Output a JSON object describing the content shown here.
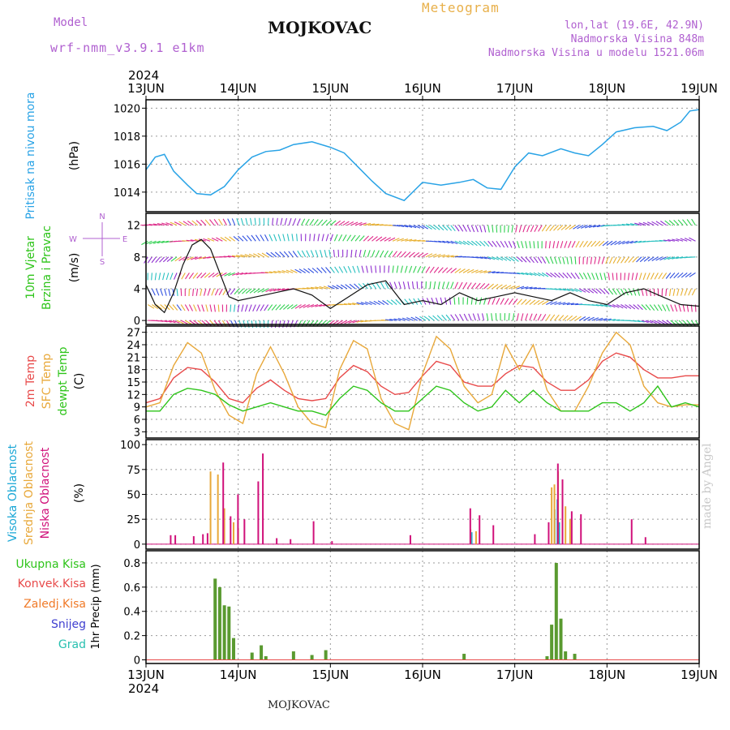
{
  "header": {
    "model_label": "Model",
    "model_run": "wrf-nmm_v3.9.1  e1km",
    "title": "MOJKOVAC",
    "meteogram": "Meteogram",
    "lonlat": "lon,lat (19.6E, 42.9N)",
    "altitude": "Nadmorska Visina 848m",
    "model_altitude": "Nadmorska Visina u modelu 1521.06m"
  },
  "footer": {
    "station": "MOJKOVAC",
    "credit": "made by Angel"
  },
  "colors": {
    "pressure": "#29a3e6",
    "temp2m": "#e84a4a",
    "sfc": "#e8a83a",
    "dew": "#2ec41a",
    "high_cloud": "#1aa7d6",
    "mid_cloud": "#e8a83a",
    "low_cloud": "#d0107a",
    "total_precip": "#2ec41a",
    "conv_precip": "#e84a4a",
    "frz_precip": "#f07a28",
    "snow": "#4040d0",
    "graupel": "#28c0b0",
    "run_labels": "#b060d0"
  },
  "chart_data": [
    {
      "type": "line",
      "id": "pressure",
      "ylabel": "(hPa)",
      "side_labels": [
        "Pritisak na nivou mora"
      ],
      "top_year": "2024",
      "x_ticks": [
        "13JUN",
        "14JUN",
        "15JUN",
        "16JUN",
        "17JUN",
        "18JUN",
        "19JUN"
      ],
      "ylim": [
        1012.6,
        1020.6
      ],
      "y_ticks": [
        1014,
        1016,
        1018,
        1020
      ],
      "series": [
        {
          "x": [
            0,
            0.1,
            0.2,
            0.3,
            0.45,
            0.55,
            0.7,
            0.85,
            1.0,
            1.15,
            1.3,
            1.45,
            1.6,
            1.8,
            2.0,
            2.15,
            2.3,
            2.45,
            2.6,
            2.8,
            3.0,
            3.2,
            3.4,
            3.55,
            3.7,
            3.85,
            4.0,
            4.15,
            4.3,
            4.5,
            4.65,
            4.8,
            4.95,
            5.1,
            5.3,
            5.5,
            5.65,
            5.8,
            5.9,
            6.0
          ],
          "y": [
            1015.6,
            1016.5,
            1016.7,
            1015.5,
            1014.5,
            1013.9,
            1013.8,
            1014.4,
            1015.6,
            1016.5,
            1016.9,
            1017.0,
            1017.4,
            1017.6,
            1017.2,
            1016.8,
            1015.8,
            1014.8,
            1013.9,
            1013.4,
            1014.7,
            1014.5,
            1014.7,
            1014.9,
            1014.3,
            1014.2,
            1015.8,
            1016.8,
            1016.6,
            1017.1,
            1016.8,
            1016.6,
            1017.4,
            1018.3,
            1018.6,
            1018.7,
            1018.4,
            1019.0,
            1019.8,
            1019.9
          ]
        }
      ]
    },
    {
      "type": "line",
      "id": "wind",
      "ylabel": "(m/s)",
      "side_labels": [
        "10m Vjetar",
        "Brzina i Pravac"
      ],
      "compass": {
        "n": "N",
        "w": "W",
        "e": "E",
        "s": "S"
      },
      "ylim": [
        -0.5,
        13.5
      ],
      "y_ticks": [
        0,
        4,
        8,
        12
      ],
      "series": [
        {
          "name": "speed",
          "x": [
            0,
            0.1,
            0.2,
            0.3,
            0.4,
            0.5,
            0.6,
            0.7,
            0.8,
            0.9,
            1.0,
            1.2,
            1.4,
            1.6,
            1.8,
            2.0,
            2.2,
            2.4,
            2.6,
            2.8,
            3.0,
            3.2,
            3.4,
            3.6,
            3.8,
            4.0,
            4.2,
            4.4,
            4.6,
            4.8,
            5.0,
            5.2,
            5.4,
            5.6,
            5.8,
            6.0
          ],
          "y": [
            4.5,
            2.0,
            1.0,
            3.5,
            7.0,
            9.5,
            10.2,
            9.0,
            6.0,
            3.0,
            2.5,
            3.0,
            3.5,
            4.0,
            3.2,
            1.5,
            3.0,
            4.5,
            5.0,
            2.0,
            2.5,
            2.0,
            3.5,
            2.5,
            3.0,
            3.5,
            3.0,
            2.5,
            3.5,
            2.5,
            2.0,
            3.5,
            4.0,
            3.0,
            2.0,
            1.8
          ]
        }
      ]
    },
    {
      "type": "line",
      "id": "temperature",
      "ylabel": "(C)",
      "side_labels": [
        "2m Temp",
        "SFC Temp",
        "dewpt Temp"
      ],
      "ylim": [
        1.5,
        28.5
      ],
      "y_ticks": [
        3,
        6,
        9,
        12,
        15,
        18,
        21,
        24,
        27
      ],
      "x": [
        0,
        0.15,
        0.3,
        0.45,
        0.6,
        0.75,
        0.9,
        1.05,
        1.2,
        1.35,
        1.5,
        1.65,
        1.8,
        1.95,
        2.1,
        2.25,
        2.4,
        2.55,
        2.7,
        2.85,
        3.0,
        3.15,
        3.3,
        3.45,
        3.6,
        3.75,
        3.9,
        4.05,
        4.2,
        4.35,
        4.5,
        4.65,
        4.8,
        4.95,
        5.1,
        5.25,
        5.4,
        5.55,
        5.7,
        5.85,
        6.0
      ],
      "series": [
        {
          "name": "2m Temp",
          "y": [
            10,
            11,
            16,
            18.5,
            18,
            15,
            11,
            10,
            13.5,
            15.5,
            13,
            11,
            10.5,
            11,
            16,
            19,
            17.5,
            14,
            12,
            12.5,
            16.5,
            20,
            19,
            15,
            14,
            14,
            17,
            19,
            18.5,
            15,
            13,
            13,
            15.5,
            20,
            22,
            21,
            18,
            16,
            16,
            16.5,
            16.5
          ]
        },
        {
          "name": "SFC Temp",
          "y": [
            9,
            10,
            19,
            24.5,
            22,
            13,
            7,
            5,
            17,
            23.5,
            17,
            9,
            5,
            4,
            18,
            25,
            23,
            11,
            5,
            3.5,
            17,
            26,
            23,
            14,
            10,
            12,
            24,
            18,
            24,
            13,
            8,
            8,
            14,
            22,
            27,
            24,
            14,
            10,
            9,
            9.5,
            9.5
          ]
        },
        {
          "name": "dewpt Temp",
          "y": [
            8,
            8,
            12,
            13.5,
            13,
            12,
            9.5,
            8,
            9,
            10,
            9,
            8,
            8,
            7,
            11,
            14,
            13,
            10,
            8,
            8,
            11,
            14,
            13,
            10,
            8,
            9,
            13,
            10,
            13,
            10,
            8,
            8,
            8,
            10,
            10,
            8,
            10,
            14,
            9,
            10,
            9
          ]
        }
      ]
    },
    {
      "type": "bar",
      "id": "clouds",
      "ylabel": "(%)",
      "side_labels": [
        "Visoka Oblacnost",
        "Srednja Oblacnost",
        "Niska Oblacnost"
      ],
      "ylim": [
        -5,
        105
      ],
      "y_ticks": [
        0,
        25,
        50,
        75,
        100
      ],
      "series": [
        {
          "name": "Visoka Oblacnost",
          "x": [
            3.55,
            4.45,
            4.48,
            4.5
          ],
          "y": [
            12,
            35,
            45,
            22
          ]
        },
        {
          "name": "Srednja Oblacnost",
          "x": [
            0.7,
            0.78,
            0.85,
            0.95,
            1.0,
            3.52,
            3.58,
            4.4,
            4.43,
            4.47,
            4.55,
            4.6
          ],
          "y": [
            73,
            70,
            36,
            22,
            16,
            15,
            13,
            57,
            60,
            73,
            38,
            25
          ]
        },
        {
          "name": "Niska Oblacnost",
          "x": [
            0.25,
            0.3,
            0.5,
            0.6,
            0.65,
            0.82,
            0.9,
            0.98,
            1.05,
            1.2,
            1.25,
            1.4,
            1.55,
            1.8,
            2.0,
            2.85,
            3.5,
            3.6,
            3.75,
            4.2,
            4.35,
            4.45,
            4.5,
            4.6,
            4.7,
            5.25,
            5.4
          ],
          "y": [
            9,
            9,
            8,
            10,
            11,
            82,
            28,
            50,
            25,
            63,
            91,
            6,
            5,
            23,
            3,
            9,
            36,
            29,
            19,
            10,
            22,
            81,
            65,
            33,
            30,
            25,
            7
          ]
        }
      ]
    },
    {
      "type": "bar",
      "id": "precip",
      "ylabel": "1hr Precip (mm)",
      "side_labels": [
        "Ukupna Kisa",
        "Konvek.Kisa",
        "Zaledj.Kisa",
        "Snijeg",
        "Grad"
      ],
      "bottom_year": "2024",
      "ylim": [
        -0.03,
        0.9
      ],
      "y_ticks": [
        0,
        0.2,
        0.4,
        0.6,
        0.8
      ],
      "series": [
        {
          "name": "Ukupna Kisa",
          "x": [
            0.75,
            0.8,
            0.85,
            0.9,
            0.95,
            1.15,
            1.25,
            1.3,
            1.6,
            1.8,
            1.95,
            3.45,
            4.35,
            4.4,
            4.45,
            4.5,
            4.55,
            4.65
          ],
          "y": [
            0.67,
            0.6,
            0.45,
            0.44,
            0.18,
            0.06,
            0.12,
            0.03,
            0.07,
            0.04,
            0.08,
            0.05,
            0.03,
            0.29,
            0.8,
            0.34,
            0.07,
            0.05
          ]
        }
      ]
    }
  ]
}
